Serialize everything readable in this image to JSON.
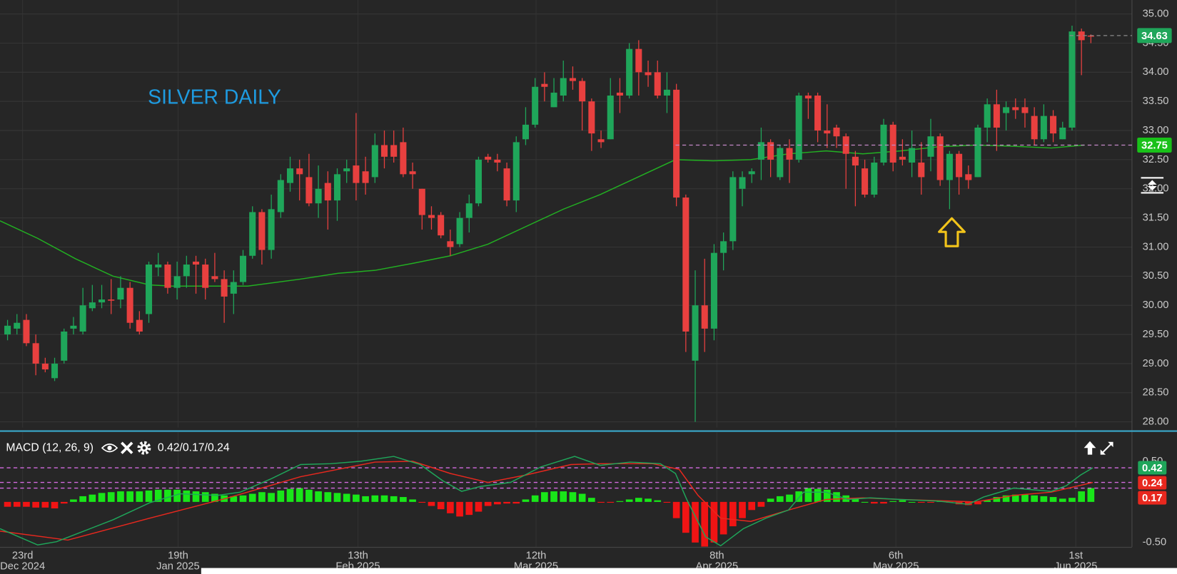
{
  "chart_data": [
    {
      "type": "candlestick",
      "title": "SILVER DAILY",
      "title_color": "#1e9be0",
      "up_color": "#1fa65a",
      "down_color": "#e8403f",
      "open": [
        29.5,
        29.6,
        29.75,
        29.35,
        29.0,
        28.75,
        29.05,
        29.6,
        29.55,
        29.95,
        30.05,
        30.1,
        30.1,
        30.3,
        29.75,
        29.85,
        30.65,
        30.7,
        30.3,
        30.5,
        30.75,
        30.7,
        30.5,
        30.45,
        30.2,
        30.4,
        30.85,
        31.6,
        30.95,
        31.6,
        32.1,
        32.35,
        32.2,
        31.75,
        32.1,
        31.8,
        32.3,
        32.4,
        32.3,
        32.2,
        32.75,
        32.75,
        32.8,
        32.3,
        32.0,
        31.55,
        31.55,
        31.1,
        31.05,
        31.5,
        31.75,
        32.55,
        32.5,
        32.35,
        31.8,
        32.85,
        33.1,
        33.8,
        33.4,
        33.6,
        33.9,
        33.85,
        33.5,
        32.85,
        32.85,
        33.65,
        33.6,
        34.4,
        34.0,
        34.0,
        33.6,
        33.7,
        31.85,
        29.05,
        30.0,
        29.6,
        30.9,
        31.1,
        32.0,
        32.25,
        32.5,
        32.8,
        32.2,
        32.7,
        32.5,
        33.6,
        33.6,
        33.0,
        33.05,
        32.9,
        32.55,
        32.35,
        31.9,
        32.45,
        33.1,
        32.55,
        32.45,
        32.45,
        32.55,
        32.9,
        32.15,
        32.6,
        32.25,
        32.2,
        33.05,
        33.45,
        33.3,
        33.4,
        33.4,
        33.25,
        32.85,
        33.25,
        32.85,
        33.05,
        34.7,
        34.63
      ],
      "high": [
        29.75,
        29.85,
        29.85,
        29.5,
        29.1,
        29.1,
        29.6,
        29.8,
        30.3,
        30.35,
        30.35,
        30.45,
        30.5,
        30.4,
        29.9,
        30.75,
        30.9,
        30.75,
        30.75,
        30.85,
        30.85,
        30.8,
        30.9,
        30.6,
        30.6,
        30.95,
        31.7,
        31.65,
        31.9,
        32.25,
        32.55,
        32.5,
        32.6,
        32.4,
        32.3,
        32.35,
        32.5,
        33.3,
        32.55,
        32.95,
        33.0,
        33.0,
        33.05,
        32.45,
        32.0,
        31.7,
        31.6,
        31.3,
        31.6,
        31.9,
        32.55,
        32.6,
        32.6,
        32.45,
        32.9,
        33.4,
        33.9,
        34.0,
        33.9,
        34.2,
        34.1,
        33.9,
        33.55,
        33.0,
        33.9,
        33.9,
        34.5,
        34.55,
        34.2,
        34.2,
        34.0,
        33.8,
        31.9,
        30.6,
        30.8,
        31.05,
        31.25,
        32.3,
        32.3,
        32.35,
        33.05,
        32.85,
        32.75,
        32.85,
        33.65,
        33.65,
        33.65,
        33.45,
        33.1,
        32.95,
        32.65,
        32.5,
        32.55,
        33.2,
        33.15,
        32.85,
        33.0,
        32.8,
        33.2,
        32.95,
        32.65,
        32.65,
        32.4,
        33.1,
        33.55,
        33.7,
        33.5,
        33.55,
        33.55,
        33.4,
        33.45,
        33.35,
        33.15,
        34.8,
        34.75,
        34.65
      ],
      "low": [
        29.4,
        29.5,
        29.3,
        28.8,
        28.85,
        28.7,
        29.0,
        29.5,
        29.5,
        29.9,
        29.95,
        29.85,
        29.95,
        29.6,
        29.5,
        29.7,
        30.5,
        30.2,
        30.1,
        30.3,
        30.2,
        30.1,
        30.4,
        29.7,
        29.85,
        30.35,
        30.8,
        30.7,
        30.8,
        31.5,
        31.95,
        31.8,
        31.7,
        31.5,
        31.3,
        31.45,
        32.1,
        31.8,
        31.9,
        32.1,
        32.35,
        32.45,
        32.2,
        32.0,
        31.3,
        31.3,
        31.15,
        30.85,
        31.0,
        31.25,
        31.7,
        32.45,
        32.3,
        31.7,
        31.6,
        32.75,
        33.05,
        33.5,
        33.4,
        33.5,
        33.7,
        33.0,
        32.65,
        32.7,
        32.85,
        33.3,
        33.55,
        33.6,
        33.75,
        33.55,
        33.3,
        31.7,
        29.2,
        28.0,
        29.2,
        29.4,
        30.6,
        30.95,
        31.7,
        32.1,
        32.15,
        32.2,
        32.15,
        32.1,
        32.45,
        33.2,
        32.8,
        32.7,
        32.7,
        32.0,
        31.7,
        31.85,
        31.85,
        32.4,
        32.3,
        32.4,
        32.2,
        31.9,
        32.3,
        32.05,
        31.65,
        31.9,
        32.0,
        32.2,
        32.8,
        32.65,
        33.0,
        33.2,
        33.05,
        32.75,
        32.8,
        32.8,
        32.85,
        33.0,
        33.95,
        34.5
      ],
      "close": [
        29.65,
        29.7,
        29.35,
        29.0,
        28.9,
        29.0,
        29.55,
        29.65,
        30.0,
        30.05,
        30.1,
        30.08,
        30.3,
        29.7,
        29.55,
        30.7,
        30.7,
        30.3,
        30.5,
        30.7,
        30.7,
        30.3,
        30.45,
        30.15,
        30.4,
        30.85,
        31.6,
        30.95,
        31.65,
        32.15,
        32.35,
        32.25,
        31.75,
        32.0,
        31.8,
        32.25,
        32.35,
        32.1,
        32.1,
        32.75,
        32.55,
        32.55,
        32.25,
        32.25,
        31.55,
        31.5,
        31.2,
        31.0,
        31.5,
        31.75,
        32.5,
        32.5,
        32.45,
        31.8,
        32.8,
        33.1,
        33.75,
        33.75,
        33.65,
        33.9,
        33.85,
        33.5,
        32.95,
        32.8,
        33.6,
        33.6,
        34.4,
        34.0,
        33.95,
        33.6,
        33.7,
        31.85,
        29.55,
        30.0,
        29.6,
        30.9,
        31.1,
        32.2,
        32.2,
        32.3,
        32.8,
        32.5,
        32.7,
        32.5,
        33.6,
        33.55,
        33.0,
        32.95,
        32.9,
        32.6,
        32.4,
        31.9,
        32.45,
        33.1,
        32.45,
        32.5,
        32.7,
        32.2,
        32.9,
        32.15,
        32.6,
        32.2,
        32.15,
        33.05,
        33.45,
        33.05,
        33.4,
        33.35,
        33.3,
        32.85,
        33.25,
        32.95,
        33.05,
        34.7,
        34.55,
        34.62
      ],
      "moving_average": {
        "color": "#22b022",
        "x": [
          -0.8,
          3.2,
          7.2,
          11.2,
          15.1,
          17.5,
          23.1,
          25.5,
          31.1,
          35.1,
          39.0,
          43.0,
          47.0,
          51.0,
          55.0,
          59.0,
          62.9,
          66.9,
          70.9,
          74.9,
          78.9,
          82.9,
          86.9,
          90.8,
          94.8,
          98.8,
          102.8,
          106.8,
          110.8,
          114.3
        ],
        "values": [
          31.45,
          31.15,
          30.8,
          30.5,
          30.35,
          30.33,
          30.33,
          30.33,
          30.45,
          30.55,
          30.6,
          30.72,
          30.85,
          31.05,
          31.35,
          31.65,
          31.9,
          32.2,
          32.5,
          32.48,
          32.5,
          32.6,
          32.65,
          32.6,
          32.65,
          32.72,
          32.75,
          32.73,
          32.7,
          32.75
        ]
      },
      "xlim": [
        -0.8,
        119.36
      ],
      "xticks": [
        {
          "value": 1.6,
          "label": "23rd",
          "sublabel": "Dec 2024"
        },
        {
          "value": 18.1,
          "label": "19th",
          "sublabel": "Jan 2025"
        },
        {
          "value": 37.2,
          "label": "13th",
          "sublabel": "Feb 2025"
        },
        {
          "value": 56.1,
          "label": "12th",
          "sublabel": "Mar 2025"
        },
        {
          "value": 75.3,
          "label": "8th",
          "sublabel": "Apr 2025"
        },
        {
          "value": 94.3,
          "label": "6th",
          "sublabel": "May 2025"
        },
        {
          "value": 113.4,
          "label": "1st",
          "sublabel": "Jun 2025"
        }
      ],
      "ylim": [
        27.9,
        35.24
      ],
      "yticks": [
        {
          "value": 28,
          "label": "28.00"
        },
        {
          "value": 28.5,
          "label": "28.50"
        },
        {
          "value": 29,
          "label": "29.00"
        },
        {
          "value": 29.5,
          "label": "29.50"
        },
        {
          "value": 30,
          "label": "30.00"
        },
        {
          "value": 30.5,
          "label": "30.50"
        },
        {
          "value": 31,
          "label": "31.00"
        },
        {
          "value": 31.5,
          "label": "31.50"
        },
        {
          "value": 32,
          "label": "32.00"
        },
        {
          "value": 32.5,
          "label": "32.50"
        },
        {
          "value": 33,
          "label": "33.00"
        },
        {
          "value": 33.5,
          "label": "33.50"
        },
        {
          "value": 34,
          "label": "34.00"
        },
        {
          "value": 34.5,
          "label": "34.50"
        },
        {
          "value": 35,
          "label": "35.00"
        }
      ],
      "grid": true,
      "price_lines": [
        {
          "value": 34.63,
          "label": "34.63",
          "color": "#1fa65a",
          "line_color": "#8a8a8a"
        },
        {
          "value": 32.75,
          "label": "32.75",
          "color": "#19c119",
          "line_color": "#c58ac8"
        }
      ]
    },
    {
      "type": "macd",
      "title": "MACD (12, 26, 9)",
      "readout": "0.42/0.17/0.24",
      "xlim": [
        -0.8,
        119.36
      ],
      "ylim": [
        -0.555,
        0.858
      ],
      "yticks": [
        {
          "value": 0.5,
          "label": "0.50"
        },
        {
          "value": -0.5,
          "label": "-0.50"
        }
      ],
      "histogram": {
        "up_color": "#19e619",
        "down_color": "#f01414",
        "values": [
          -0.06,
          -0.06,
          -0.06,
          -0.07,
          -0.07,
          -0.08,
          -0.02,
          0.03,
          0.07,
          0.09,
          0.11,
          0.12,
          0.13,
          0.13,
          0.13,
          0.14,
          0.15,
          0.15,
          0.15,
          0.14,
          0.13,
          0.12,
          0.1,
          0.08,
          0.07,
          0.08,
          0.1,
          0.12,
          0.11,
          0.14,
          0.16,
          0.17,
          0.15,
          0.13,
          0.12,
          0.11,
          0.1,
          0.09,
          0.07,
          0.08,
          0.08,
          0.07,
          0.06,
          0.03,
          -0.01,
          -0.05,
          -0.09,
          -0.14,
          -0.18,
          -0.16,
          -0.12,
          -0.05,
          -0.03,
          -0.02,
          -0.02,
          0.03,
          0.08,
          0.12,
          0.13,
          0.13,
          0.12,
          0.1,
          0.05,
          -0.01,
          -0.01,
          0.01,
          0.03,
          0.05,
          0.04,
          0.02,
          -0.01,
          -0.2,
          -0.38,
          -0.5,
          -0.55,
          -0.5,
          -0.4,
          -0.3,
          -0.2,
          -0.1,
          -0.06,
          0.04,
          0.07,
          0.09,
          0.13,
          0.17,
          0.16,
          0.15,
          0.12,
          0.08,
          0.04,
          0.0,
          -0.02,
          -0.02,
          0.01,
          0.02,
          0.0,
          -0.01,
          -0.01,
          0.01,
          -0.01,
          -0.03,
          -0.04,
          -0.03,
          0.02,
          0.06,
          0.08,
          0.09,
          0.09,
          0.08,
          0.07,
          0.06,
          0.04,
          0.05,
          0.13,
          0.17
        ]
      },
      "macd": {
        "color": "#1fa65a",
        "x": [
          -0.8,
          3.2,
          5.2,
          7.2,
          11.2,
          15.1,
          18.3,
          22.3,
          24.7,
          27.9,
          31.1,
          34.3,
          37.5,
          41.0,
          43.8,
          46.2,
          48.2,
          50.2,
          53.4,
          56.6,
          60.2,
          62.9,
          66.1,
          69.3,
          70.9,
          72.1,
          74.1,
          75.7,
          78.1,
          80.5,
          82.9,
          84.5,
          86.9,
          89.2,
          91.6,
          94.8,
          98.8,
          102.0,
          103.6,
          106.8,
          110.8,
          112.4,
          113.9,
          115.2
        ],
        "values": [
          -0.33,
          -0.53,
          -0.49,
          -0.4,
          -0.22,
          -0.01,
          0.1,
          0.08,
          0.12,
          0.28,
          0.46,
          0.47,
          0.5,
          0.56,
          0.46,
          0.26,
          0.13,
          0.19,
          0.24,
          0.43,
          0.56,
          0.45,
          0.49,
          0.47,
          0.35,
          0.03,
          -0.43,
          -0.54,
          -0.33,
          -0.2,
          -0.1,
          0.12,
          0.12,
          0.03,
          0.05,
          0.03,
          0.01,
          -0.03,
          0.06,
          0.17,
          0.13,
          0.2,
          0.33,
          0.42
        ]
      },
      "signal": {
        "color": "#e8281e",
        "x": [
          -0.8,
          6.4,
          15.1,
          23.1,
          31.1,
          39.0,
          43.0,
          47.0,
          51.0,
          55.0,
          59.8,
          62.9,
          68.5,
          71.3,
          73.3,
          75.7,
          78.9,
          82.9,
          86.9,
          90.8,
          94.8,
          102.8,
          106.8,
          110.8,
          115.2
        ],
        "values": [
          -0.36,
          -0.47,
          -0.2,
          0.04,
          0.31,
          0.49,
          0.5,
          0.35,
          0.24,
          0.33,
          0.46,
          0.47,
          0.47,
          0.4,
          0.08,
          -0.2,
          -0.24,
          -0.1,
          0.03,
          0.05,
          0.03,
          0.0,
          0.08,
          0.12,
          0.24
        ]
      },
      "level_color": "#d46be0",
      "levels": [
        {
          "value": 0.42,
          "label": "0.42",
          "color": "#1fa65a"
        },
        {
          "value": 0.24,
          "label": "0.24",
          "color": "#e8281e"
        },
        {
          "value": 0.17,
          "label": "0.17",
          "color": "#e8281e"
        }
      ]
    }
  ]
}
